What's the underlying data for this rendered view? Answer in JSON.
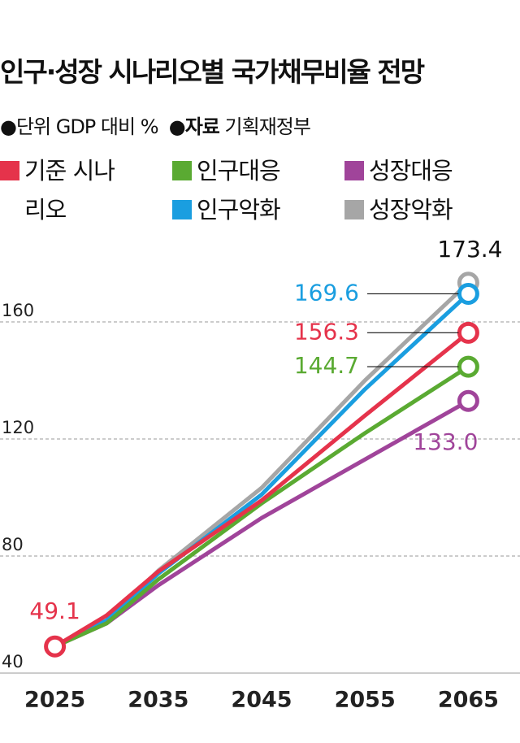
{
  "chart_data": {
    "type": "line",
    "title": "인구·성장 시나리오별 국가채무비율 전망",
    "subtitle": {
      "unit": "●단위 GDP 대비 %",
      "source_label": "●자료",
      "source": "기획재정부"
    },
    "x": [
      2025,
      2030,
      2035,
      2045,
      2055,
      2065
    ],
    "series": [
      {
        "name": "기준 시나리오",
        "color": "#e5334b",
        "values": [
          49.1,
          59.7,
          74.7,
          99,
          128,
          156.3
        ],
        "value_labels": [
          "49.1",
          null,
          null,
          null,
          null,
          "156.3"
        ]
      },
      {
        "name": "인구대응",
        "color": "#5aaa32",
        "values": [
          49.1,
          57,
          72,
          98,
          122,
          144.7
        ],
        "value_labels": [
          null,
          null,
          null,
          null,
          null,
          "144.7"
        ]
      },
      {
        "name": "성장대응",
        "color": "#a0449a",
        "values": [
          49.1,
          57,
          70,
          93,
          113,
          133.0
        ],
        "value_labels": [
          null,
          null,
          null,
          null,
          null,
          "133.0"
        ]
      },
      {
        "name": "인구악화",
        "color": "#1a9ee0",
        "values": [
          49.1,
          58,
          74,
          101,
          137,
          169.6
        ],
        "value_labels": [
          null,
          null,
          null,
          null,
          null,
          "169.6"
        ]
      },
      {
        "name": "성장악화",
        "color": "#a6a6a6",
        "values": [
          49.1,
          58,
          75,
          103.3,
          140,
          173.4
        ],
        "value_labels": [
          null,
          null,
          null,
          null,
          null,
          "173.4"
        ]
      }
    ],
    "xlim": [
      2020,
      2070
    ],
    "xticks": [
      2025,
      2035,
      2045,
      2055,
      2065
    ],
    "ylim": [
      40,
      180
    ],
    "yticks": [
      40,
      80,
      120,
      160
    ],
    "grid": true
  }
}
